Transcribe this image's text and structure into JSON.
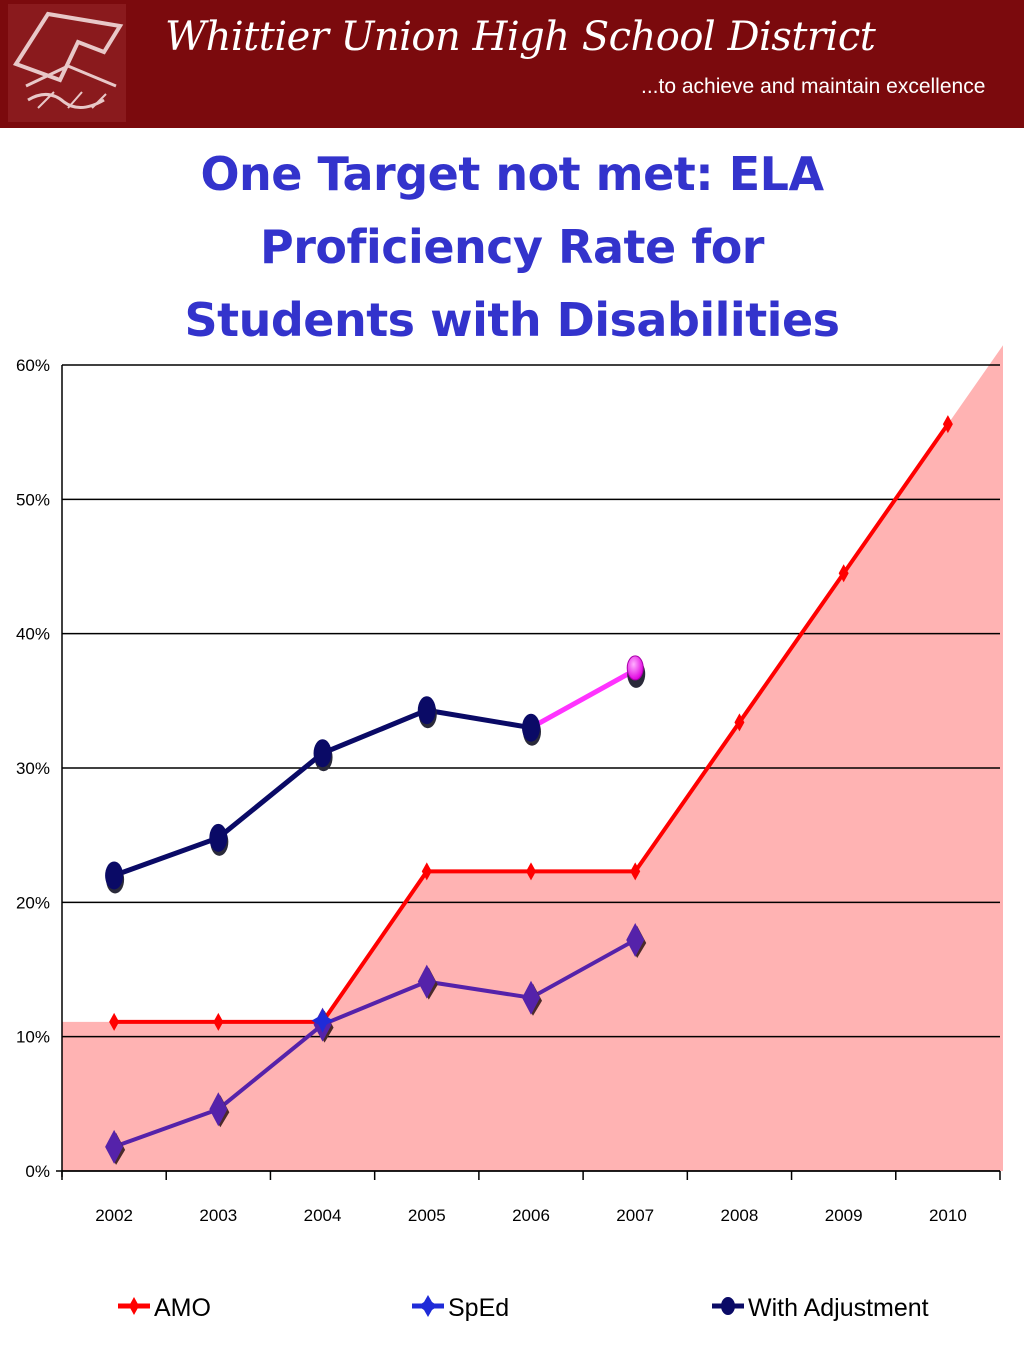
{
  "header": {
    "district_name": "Whittier Union High School District",
    "tagline": "...to achieve and maintain excellence",
    "logo_icon": "district-seal-icon"
  },
  "slide": {
    "title_lines": [
      "One Target not met:  ELA",
      "Proficiency Rate for",
      "Students with Disabilities"
    ]
  },
  "colors": {
    "banner": "#7b0a0d",
    "title": "#3333cc",
    "amo": "#ff0000",
    "area_fill": "#ffb3b3",
    "sped": "#5522aa",
    "sped_marker": "#5522aa",
    "with_adjustment": "#0a0a66",
    "projection": "#ff33ff"
  },
  "chart_data": {
    "type": "line",
    "title": "",
    "xlabel": "",
    "ylabel": "",
    "categories": [
      "2002",
      "2003",
      "2004",
      "2005",
      "2006",
      "2007",
      "2008",
      "2009",
      "2010"
    ],
    "ylim": [
      0,
      60
    ],
    "yticks": [
      0,
      10,
      20,
      30,
      40,
      50,
      60
    ],
    "ytick_labels": [
      "0%",
      "10%",
      "20%",
      "30%",
      "40%",
      "50%",
      "60%"
    ],
    "grid": true,
    "legend_position": "bottom",
    "series": [
      {
        "name": "AMO",
        "values": [
          11.1,
          11.1,
          11.1,
          22.3,
          22.3,
          22.3,
          33.4,
          44.5,
          55.6
        ]
      },
      {
        "name": "SpEd",
        "values": [
          1.8,
          4.6,
          10.9,
          14.1,
          12.9,
          17.2,
          null,
          null,
          null
        ]
      },
      {
        "name": "With Adjustment",
        "values": [
          22.0,
          24.8,
          31.1,
          34.3,
          33.0,
          37.3,
          null,
          null,
          null
        ]
      }
    ],
    "legend": [
      "AMO",
      "SpEd",
      "With Adjustment"
    ]
  }
}
